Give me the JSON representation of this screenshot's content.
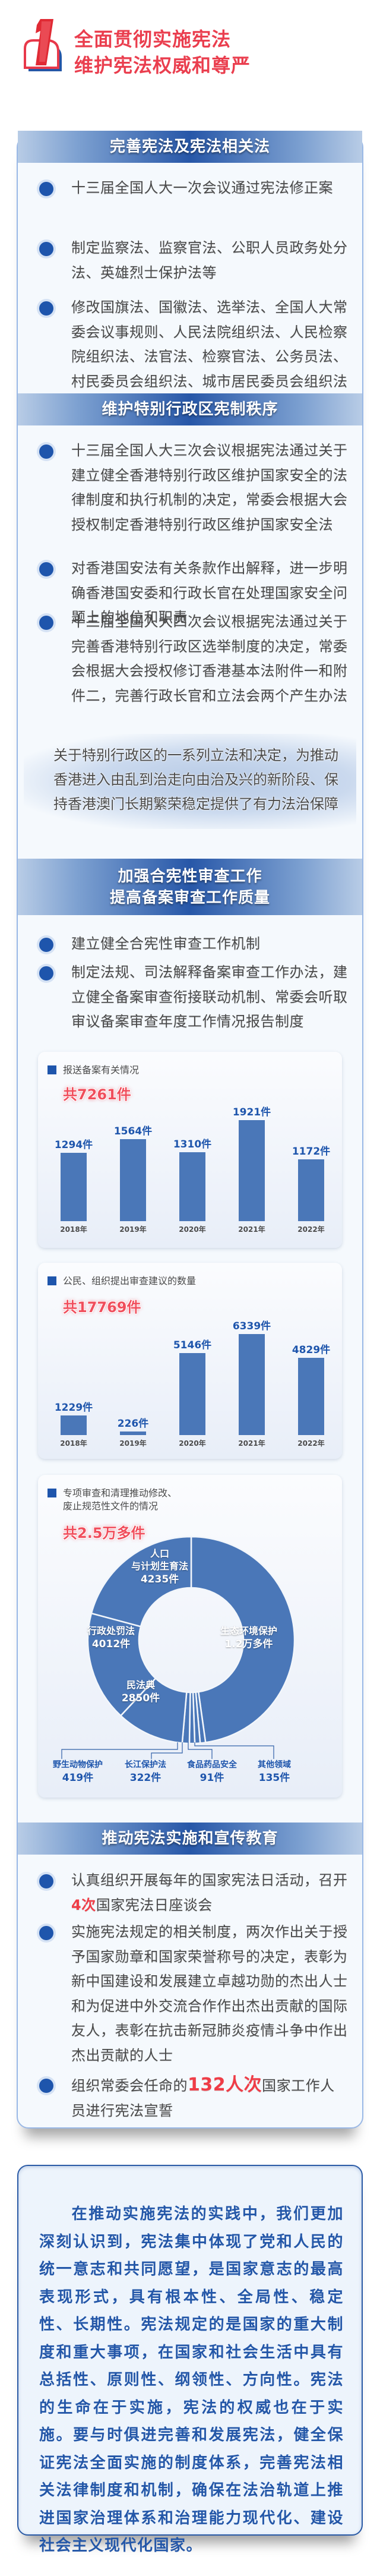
{
  "header": {
    "number_badge": "1",
    "title_line1": "全面贯彻实施宪法",
    "title_line2": "维护宪法权威和尊严"
  },
  "colors": {
    "title_red": "#ea3e4e",
    "primary_blue": "#1e55ac",
    "bar_blue": "#4a77b8",
    "highlight_red": "#ef3d47",
    "card_border": "#9ab8e6"
  },
  "sections": [
    {
      "title": "完善宪法及宪法相关法",
      "bullets": [
        "十三届全国人大一次会议通过宪法修正案",
        "制定监察法、监察官法、公职人员政务处分法、英雄烈士保护法等",
        "修改国旗法、国徽法、选举法、全国人大常委会议事规则、人民法院组织法、人民检察院组织法、法官法、检察官法、公务员法、村民委员会组织法、城市居民委员会组织法等"
      ]
    },
    {
      "title": "维护特别行政区宪制秩序",
      "bullets": [
        "十三届全国人大三次会议根据宪法通过关于建立健全香港特别行政区维护国家安全的法律制度和执行机制的决定，常委会根据大会授权制定香港特别行政区维护国家安全法",
        "对香港国安法有关条款作出解释，进一步明确香港国安委和行政长官在处理国家安全问题上的地位和职责",
        "十三届全国人大四次会议根据宪法通过关于完善香港特别行政区选举制度的决定，常委会根据大会授权修订香港基本法附件一和附件二，完善行政长官和立法会两个产生办法"
      ],
      "note": "关于特别行政区的一系列立法和决定，为推动香港进入由乱到治走向由治及兴的新阶段、保持香港澳门长期繁荣稳定提供了有力法治保障"
    },
    {
      "title_line1": "加强合宪性审查工作",
      "title_line2": "提高备案审查工作质量",
      "bullets": [
        "建立健全合宪性审查工作机制",
        "制定法规、司法解释备案审查工作办法，建立健全备案审查衔接联动机制、常委会听取审议备案审查年度工作情况报告制度"
      ]
    },
    {
      "title": "推动宪法实施和宣传教育",
      "bullets": [
        {
          "pre": "认真组织开展每年的国家宪法日活动，召开",
          "highlight": "4次",
          "post": "国家宪法日座谈会"
        },
        {
          "text": "实施宪法规定的相关制度，两次作出关于授予国家勋章和国家荣誉称号的决定，表彰为新中国建设和发展建立卓越功勋的杰出人士和为促进中外交流合作作出杰出贡献的国际友人，表彰在抗击新冠肺炎疫情斗争中作出杰出贡献的人士"
        },
        {
          "pre": "组织常委会任命的",
          "highlight": "132人次",
          "post": "国家工作人员进行宪法宣誓"
        }
      ]
    }
  ],
  "chart_data": [
    {
      "type": "bar",
      "title": "报送备案有关情况",
      "total_label": "共7261件",
      "categories": [
        "2018年",
        "2019年",
        "2020年",
        "2021年",
        "2022年"
      ],
      "values": [
        1294,
        1564,
        1310,
        1921,
        1172
      ],
      "value_labels": [
        "1294件",
        "1564件",
        "1310件",
        "1921件",
        "1172件"
      ],
      "unit": "件",
      "xlabel": "",
      "ylabel": "",
      "grid": false,
      "legend": "none"
    },
    {
      "type": "bar",
      "title": "公民、组织提出审查建议的数量",
      "total_label": "共17769件",
      "categories": [
        "2018年",
        "2019年",
        "2020年",
        "2021年",
        "2022年"
      ],
      "values": [
        1229,
        226,
        5146,
        6339,
        4829
      ],
      "value_labels": [
        "1229件",
        "226件",
        "5146件",
        "6339件",
        "4829件"
      ],
      "unit": "件",
      "xlabel": "",
      "ylabel": "",
      "grid": false,
      "legend": "none"
    },
    {
      "type": "pie",
      "style": "donut",
      "title_line1": "专项审查和清理推动修改、",
      "title_line2": "废止规范性文件的情况",
      "total_label": "共2.5万多件",
      "slices": [
        {
          "name": "生态环境保护",
          "value": 12000,
          "label": "1.2万多件"
        },
        {
          "name": "其他领域",
          "value": 135,
          "label": "135件"
        },
        {
          "name": "食品药品安全",
          "value": 91,
          "label": "91件"
        },
        {
          "name": "长江保护法",
          "value": 322,
          "label": "322件"
        },
        {
          "name": "野生动物保护",
          "value": 419,
          "label": "419件"
        },
        {
          "name": "民法典",
          "value": 2850,
          "label": "2850件"
        },
        {
          "name": "行政处罚法",
          "value": 4012,
          "label": "4012件"
        },
        {
          "name": "人口与计划生育法",
          "name_line1": "人口",
          "name_line2": "与计划生育法",
          "value": 4235,
          "label": "4235件"
        }
      ]
    }
  ],
  "summary": "在推动实施宪法的实践中，我们更加深刻认识到，宪法集中体现了党和人民的统一意志和共同愿望，是国家意志的最高表现形式，具有根本性、全局性、稳定性、长期性。宪法规定的是国家的重大制度和重大事项，在国家和社会生活中具有总括性、原则性、纲领性、方向性。宪法的生命在于实施，宪法的权威也在于实施。要与时俱进完善和发展宪法，健全保证宪法全面实施的制度体系，完善宪法相关法律制度和机制，确保在法治轨道上推进国家治理体系和治理能力现代化、建设社会主义现代化国家。"
}
